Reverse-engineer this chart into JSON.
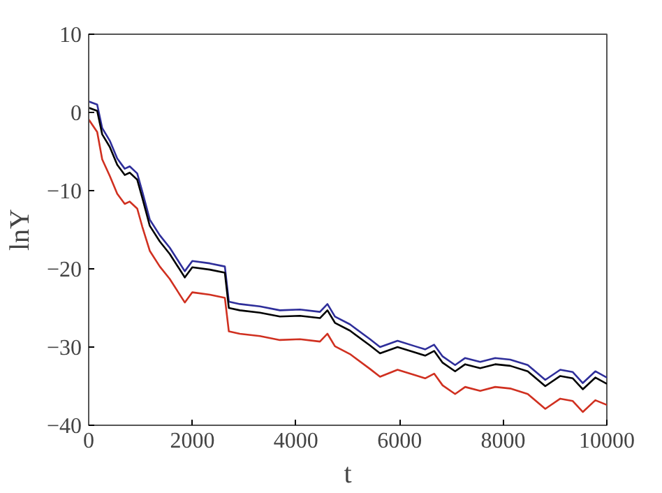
{
  "chart_data": {
    "type": "line",
    "xlabel": "t",
    "ylabel": "lnY",
    "xlim": [
      0,
      10000
    ],
    "ylim": [
      -40,
      10
    ],
    "xticks": [
      0,
      2000,
      4000,
      6000,
      8000,
      10000
    ],
    "yticks": [
      -40,
      -30,
      -20,
      -10,
      0,
      10
    ],
    "grid": false,
    "line_style": "solid",
    "x": [
      0,
      164,
      261,
      406,
      551,
      696,
      792,
      937,
      1034,
      1179,
      1372,
      1565,
      1855,
      2000,
      2338,
      2628,
      2705,
      2917,
      3304,
      3690,
      4077,
      4463,
      4608,
      4753,
      5043,
      5430,
      5623,
      5961,
      6300,
      6493,
      6667,
      6831,
      7072,
      7266,
      7556,
      7846,
      8135,
      8474,
      8812,
      9101,
      9343,
      9536,
      9778,
      10000
    ],
    "series": [
      {
        "color": "#2e2e9a",
        "values": [
          1.4,
          1.0,
          -2.0,
          -3.6,
          -5.9,
          -7.2,
          -6.9,
          -7.8,
          -10.1,
          -13.7,
          -15.7,
          -17.3,
          -20.3,
          -19.0,
          -19.3,
          -19.7,
          -24.2,
          -24.5,
          -24.8,
          -25.3,
          -25.2,
          -25.5,
          -24.5,
          -26.1,
          -27.1,
          -29.0,
          -30.0,
          -29.2,
          -29.9,
          -30.3,
          -29.7,
          -31.2,
          -32.3,
          -31.4,
          -31.9,
          -31.4,
          -31.6,
          -32.3,
          -34.2,
          -32.9,
          -33.2,
          -34.6,
          -33.1,
          -33.9
        ]
      },
      {
        "color": "#000000",
        "values": [
          0.6,
          0.2,
          -2.8,
          -4.4,
          -6.7,
          -8.0,
          -7.7,
          -8.6,
          -10.9,
          -14.5,
          -16.5,
          -18.1,
          -21.1,
          -19.8,
          -20.1,
          -20.5,
          -25.0,
          -25.3,
          -25.6,
          -26.1,
          -26.0,
          -26.3,
          -25.3,
          -26.9,
          -27.9,
          -29.8,
          -30.8,
          -30.0,
          -30.7,
          -31.1,
          -30.5,
          -32.0,
          -33.1,
          -32.2,
          -32.7,
          -32.2,
          -32.4,
          -33.1,
          -35.0,
          -33.7,
          -34.0,
          -35.4,
          -33.9,
          -34.7
        ]
      },
      {
        "color": "#d03020",
        "values": [
          -0.9,
          -2.5,
          -6.0,
          -8.1,
          -10.4,
          -11.7,
          -11.4,
          -12.3,
          -14.6,
          -17.7,
          -19.7,
          -21.3,
          -24.3,
          -23.0,
          -23.3,
          -23.7,
          -28.0,
          -28.3,
          -28.6,
          -29.1,
          -29.0,
          -29.3,
          -28.3,
          -29.9,
          -30.9,
          -32.8,
          -33.8,
          -32.9,
          -33.6,
          -34.0,
          -33.4,
          -34.9,
          -36.0,
          -35.1,
          -35.6,
          -35.1,
          -35.3,
          -36.0,
          -37.9,
          -36.6,
          -36.9,
          -38.3,
          -36.8,
          -37.4
        ]
      }
    ]
  }
}
